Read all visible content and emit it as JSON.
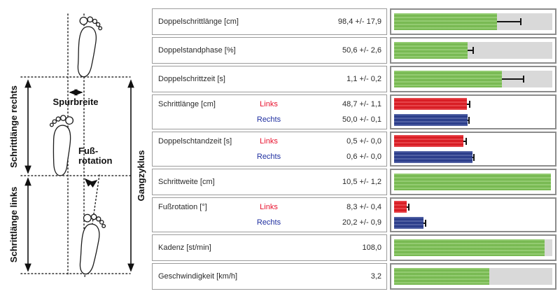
{
  "diagram": {
    "spurbreite_label": "Spurbreite",
    "fussrotation_label_line1": "Fuß-",
    "fussrotation_label_line2": "rotation",
    "schrittlaenge_rechts_label": "Schrittlänge rechts",
    "schrittlaenge_links_label": "Schrittlänge links",
    "gangzyklus_label": "Gangzyklus"
  },
  "colors": {
    "green": "#7ec156",
    "red": "#e11f26",
    "blue": "#2e4191",
    "track_gray": "#d9d9d9",
    "links_text": "#e8112d",
    "rechts_text": "#1f2fa0"
  },
  "table": {
    "rows": [
      {
        "label": "Doppelschrittlänge [cm]",
        "type": "single",
        "entries": [
          {
            "side": "",
            "value": "98,4 +/- 17,9",
            "bar_color": "green",
            "bar_pct": 65,
            "err_pct": 15,
            "track": true
          }
        ]
      },
      {
        "label": "Doppelstandphase [%]",
        "type": "single",
        "entries": [
          {
            "side": "",
            "value": "50,6 +/- 2,6",
            "bar_color": "green",
            "bar_pct": 46.5,
            "err_pct": 3.5,
            "track": true
          }
        ]
      },
      {
        "label": "Doppelschrittzeit [s]",
        "type": "single",
        "entries": [
          {
            "side": "",
            "value": "1,1 +/- 0,2",
            "bar_color": "green",
            "bar_pct": 68,
            "err_pct": 14,
            "track": true
          }
        ]
      },
      {
        "label": "Schrittlänge [cm]",
        "type": "double",
        "entries": [
          {
            "side": "Links",
            "value": "48,7 +/- 1,1",
            "bar_color": "red",
            "bar_pct": 46,
            "err_pct": 2,
            "track": false
          },
          {
            "side": "Rechts",
            "value": "50,0 +/- 0,1",
            "bar_color": "blue",
            "bar_pct": 46.5,
            "err_pct": 1,
            "track": false
          }
        ]
      },
      {
        "label": "Doppelschtandzeit [s]",
        "type": "double",
        "entries": [
          {
            "side": "Links",
            "value": "0,5 +/- 0,0",
            "bar_color": "red",
            "bar_pct": 44,
            "err_pct": 1.5,
            "track": false
          },
          {
            "side": "Rechts",
            "value": "0,6 +/- 0,0",
            "bar_color": "blue",
            "bar_pct": 49.5,
            "err_pct": 1,
            "track": false
          }
        ]
      },
      {
        "label": "Schrittweite [cm]",
        "type": "single",
        "entries": [
          {
            "side": "",
            "value": "10,5 +/- 1,2",
            "bar_color": "green",
            "bar_pct": 99,
            "err_pct": 0,
            "track": false
          }
        ]
      },
      {
        "label": "Fußrotation [°]",
        "type": "double",
        "entries": [
          {
            "side": "Links",
            "value": "8,3 +/- 0,4",
            "bar_color": "red",
            "bar_pct": 8,
            "err_pct": 1.5,
            "track": false
          },
          {
            "side": "Rechts",
            "value": "20,2 +/- 0,9",
            "bar_color": "blue",
            "bar_pct": 18.5,
            "err_pct": 1.5,
            "track": false
          }
        ]
      },
      {
        "label": "Kadenz [st/min]",
        "type": "single",
        "entries": [
          {
            "side": "",
            "value": "108,0",
            "bar_color": "green",
            "bar_pct": 95,
            "err_pct": 0,
            "track": true
          }
        ]
      },
      {
        "label": "Geschwindigkeit [km/h]",
        "type": "single",
        "entries": [
          {
            "side": "",
            "value": "3,2",
            "bar_color": "green",
            "bar_pct": 60,
            "err_pct": 0,
            "track": true
          }
        ]
      }
    ]
  }
}
